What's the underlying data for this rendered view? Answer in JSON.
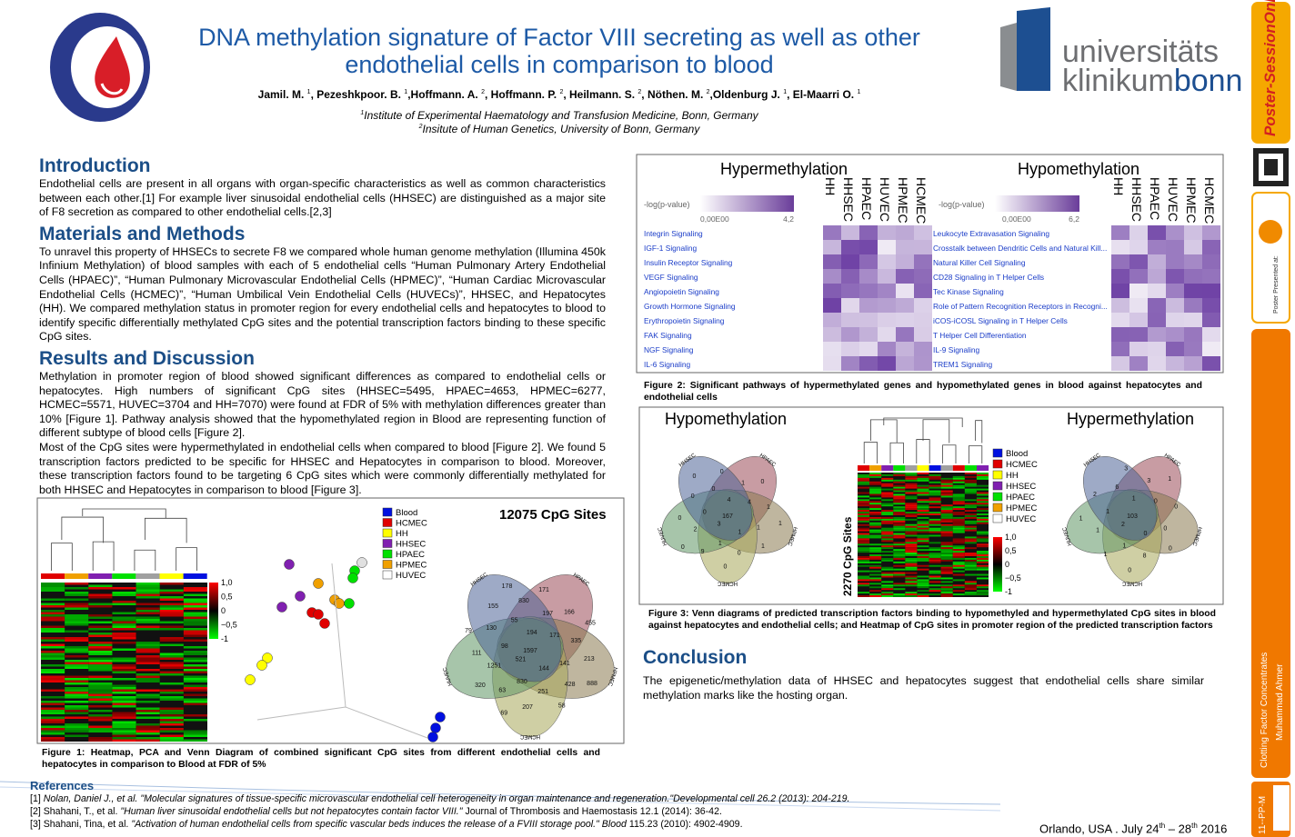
{
  "header": {
    "title": [
      "DNA methylation signature of Factor VIII secreting as well as other",
      "endothelial cells in comparison to blood"
    ],
    "authors": [
      {
        "name": "Jamil. M. ",
        "sup": "1"
      },
      {
        "name": ", Pezeshkpoor. B. ",
        "sup": "1"
      },
      {
        "name": ",Hoffmann. A. ",
        "sup": "2"
      },
      {
        "name": ", Hoffmann. P. ",
        "sup": "2"
      },
      {
        "name": ", Heilmann. S. ",
        "sup": "2"
      },
      {
        "name": ", Nöthen. M. ",
        "sup": "2"
      },
      {
        "name": ",Oldenburg J. ",
        "sup": "1"
      },
      {
        "name": ", El-Maarri O. ",
        "sup": "1"
      }
    ],
    "affiliations": [
      {
        "sup": "1",
        "text": "Institute of Experimental Haematology and Transfusion Medicine, Bonn, Germany"
      },
      {
        "sup": "2",
        "text": "Insitute of Human Genetics, University of Bonn, Germany"
      }
    ],
    "logo_right": [
      "universitäts",
      "klinikum",
      "bonn"
    ]
  },
  "sections": [
    {
      "heading": "Introduction",
      "paragraphs": [
        "Endothelial cells are present in all organs with organ-specific characteristics as well as common characteristics between each other.[1] For example liver sinusoidal endothelial cells (HHSEC) are distinguished as a major site of F8 secretion as compared to other endothelial cells.[2,3]"
      ]
    },
    {
      "heading": "Materials and Methods",
      "paragraphs": [
        "To unravel this property of HHSECs to secrete F8 we compared whole human genome methylation (Illumina 450k Infinium Methylation) of blood samples with each of 5 endothelial cells “Human Pulmonary Artery Endothelial Cells (HPAEC)”, “Human Pulmonary Microvascular Endothelial Cells (HPMEC)”, “Human Cardiac Microvascular Endothelial Cells (HCMEC)”, “Human Umbilical Vein Endothelial Cells (HUVECs)”, HHSEC, and Hepatocytes (HH). We compared methylation status in promoter region for every endothelial cells and hepatocytes to blood to identify specific differentially methylated CpG sites and the potential transcription factors binding to these specific CpG sites."
      ]
    },
    {
      "heading": "Results and Discussion",
      "paragraphs": [
        "Methylation in promoter region of blood showed significant differences as compared to endothelial cells or hepatocytes. High numbers of significant CpG sites (HHSEC=5495, HPAEC=4653, HPMEC=6277, HCMEC=5571, HUVEC=3704 and HH=7070) were found at FDR of 5% with methylation differences greater than 10% [Figure 1]. Pathway analysis showed that the hypomethylated region in Blood are representing function of different subtype of blood cells [Figure 2].",
        "Most of the CpG sites were hypermethylated in endothelial cells when compared to blood [Figure 2]. We found 5 transcription factors predicted to be specific for HHSEC and Hepatocytes in comparison to blood. Moreover, these transcription factors found to be targeting 6 CpG sites which were commonly differentially methylated for both HHSEC and Hepatocytes in comparison to blood [Figure 3]."
      ]
    }
  ],
  "figure1": {
    "title": "12075 CpG Sites",
    "legend": [
      "Blood",
      "HCMEC",
      "HH",
      "HHSEC",
      "HPAEC",
      "HPMEC",
      "HUVEC"
    ],
    "legend_colors": [
      "#0010e0",
      "#e00000",
      "#ffff00",
      "#8020b0",
      "#00e000",
      "#f0a000",
      "#ffffff"
    ],
    "scale": [
      "1,0",
      "0,5",
      "0",
      "−0,5",
      "-1"
    ],
    "venn_labels": [
      "HPAEC",
      "HPMEC",
      "HCMEC",
      "HUVEC",
      "HHSEC"
    ],
    "venn_numbers": [
      "1597",
      "521",
      "194",
      "144",
      "98",
      "171",
      "830",
      "55",
      "141",
      "1251",
      "197",
      "251",
      "130",
      "335",
      "63",
      "830",
      "428",
      "111",
      "166",
      "207",
      "155",
      "213",
      "320",
      "171",
      "58",
      "79",
      "455",
      "69",
      "178",
      "888"
    ],
    "caption": "Figure 1: Heatmap, PCA and Venn Diagram of combined significant CpG sites from different endothelial cells and hepatocytes in comparison to Blood at FDR of 5%"
  },
  "figure2": {
    "panels": [
      {
        "title": "Hypermethylation",
        "scale_label": "-log(p-value)",
        "range": [
          "0,00E00",
          "4,2"
        ],
        "columns": [
          "HH",
          "HHSEC",
          "HPAEC",
          "HUVEC",
          "HPMEC",
          "HCMEC"
        ],
        "pathways": [
          "Integrin Signaling",
          "IGF-1 Signaling",
          "Insulin Receptor Signaling",
          "VEGF Signaling",
          "Angiopoietin Signaling",
          "Growth Hormone Signaling",
          "Erythropoietin Signaling",
          "FAK Signaling",
          "NGF Signaling",
          "IL-6 Signaling"
        ]
      },
      {
        "title": "Hypomethylation",
        "scale_label": "-log(p-value)",
        "range": [
          "0,00E00",
          "6,2"
        ],
        "columns": [
          "HH",
          "HHSEC",
          "HPAEC",
          "HUVEC",
          "HPMEC",
          "HCMEC"
        ],
        "pathways": [
          "Leukocyte Extravasation Signaling",
          "Crosstalk between Dendritic Cells and Natural Kill...",
          "Natural Killer Cell Signaling",
          "CD28 Signaling in T Helper Cells",
          "Tec Kinase Signaling",
          "Role of Pattern Recognition Receptors in Recogni...",
          "iCOS-iCOSL Signaling in T Helper Cells",
          "T Helper Cell Differentiation",
          "IL-9 Signaling",
          "TREM1 Signaling"
        ]
      }
    ],
    "caption": "Figure 2: Significant pathways of hypermethylated genes and hypomethylated genes in blood against hepatocytes and endothelial cells"
  },
  "figure3": {
    "titles": [
      "Hypomethylation",
      "Hypermethylation"
    ],
    "legend": [
      "Blood",
      "HCMEC",
      "HH",
      "HHSEC",
      "HPAEC",
      "HPMEC",
      "HUVEC"
    ],
    "legend_colors": [
      "#0010e0",
      "#e00000",
      "#ffff00",
      "#8020b0",
      "#00e000",
      "#f0a000",
      "#ffffff"
    ],
    "scale": [
      "1,0",
      "0,5",
      "0",
      "−0,5",
      "-1"
    ],
    "heatmap_label": "2270 CpG Sites",
    "venn_labels": [
      "HPAEC",
      "HPMEC",
      "HCMEC",
      "HUVEC",
      "HHSEC"
    ],
    "venn_numbers": [
      [
        "167",
        "3",
        "4",
        "1",
        "0",
        "4",
        "1",
        "0",
        "1",
        "2",
        "1",
        "0",
        "0",
        "1",
        "9",
        "0",
        "1",
        "0",
        "0",
        "0",
        "0",
        "1",
        "0"
      ],
      [
        "103",
        "2",
        "1",
        "0",
        "1",
        "0",
        "1",
        "6",
        "0",
        "1",
        "3",
        "8",
        "2",
        "0",
        "1",
        "3",
        "0",
        "1",
        "1",
        "0"
      ]
    ],
    "caption": "Figure 3: Venn diagrams of predicted transcription factors binding to hypomethyled and hypermethylated CpG sites in blood against hepatocytes and endothelial cells; and Heatmap of CpG sites in promoter region of the predicted transcription factors"
  },
  "conclusion": {
    "heading": "Conclusion",
    "text": "The epigenetic/methylation data of HHSEC and hepatocytes suggest that endothelial cells share similar methylation marks like the hosting organ."
  },
  "references": {
    "heading": "References",
    "items": [
      [
        {
          "text": "[1] ",
          "italic": false
        },
        {
          "text": "Nolan, Daniel J., et al. \"Molecular signatures of tissue-specific microvascular endothelial cell heterogeneity in organ maintenance and regeneration.\"Developmental cell 26.2 (2013): 204-219.",
          "italic": true
        }
      ],
      [
        {
          "text": "[2] Shahani, T., et al. ",
          "italic": false
        },
        {
          "text": "\"Human liver sinusoidal endothelial cells but not hepatocytes contain factor VIII.\"",
          "italic": true
        },
        {
          "text": " Journal of Thrombosis and Haemostasis 12.1 (2014): 36-42.",
          "italic": false
        }
      ],
      [
        {
          "text": "[3] Shahani, Tina, et al. ",
          "italic": false
        },
        {
          "text": "\"Activation of human endothelial cells from specific vascular beds induces the release of a FVIII storage pool.\" Blood",
          "italic": true
        },
        {
          "text": " 115.23 (2010): 4902-4909.",
          "italic": false
        }
      ]
    ]
  },
  "footer": {
    "place": "Orlando, USA . July 24",
    "sup1": "th",
    "mid": " – 28",
    "sup2": "th",
    "end": " 2016"
  },
  "sidebar": {
    "brand": "Poster-SessionOnline",
    "presented": "Poster Presented at:",
    "topic": "Clotting Factor Concentrates",
    "author": "Muhammad Ahmer",
    "code": "11--PP-M"
  }
}
